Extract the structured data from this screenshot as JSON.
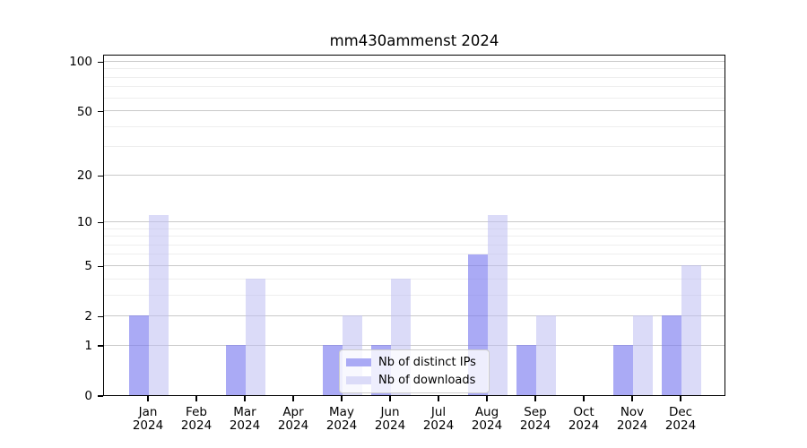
{
  "chart_data": {
    "type": "bar",
    "title": "mm430ammenst 2024",
    "categories": [
      {
        "month": "Jan",
        "year": "2024"
      },
      {
        "month": "Feb",
        "year": "2024"
      },
      {
        "month": "Mar",
        "year": "2024"
      },
      {
        "month": "Apr",
        "year": "2024"
      },
      {
        "month": "May",
        "year": "2024"
      },
      {
        "month": "Jun",
        "year": "2024"
      },
      {
        "month": "Jul",
        "year": "2024"
      },
      {
        "month": "Aug",
        "year": "2024"
      },
      {
        "month": "Sep",
        "year": "2024"
      },
      {
        "month": "Oct",
        "year": "2024"
      },
      {
        "month": "Nov",
        "year": "2024"
      },
      {
        "month": "Dec",
        "year": "2024"
      }
    ],
    "series": [
      {
        "name": "Nb of distinct IPs",
        "values": [
          2,
          0,
          1,
          0,
          1,
          1,
          0,
          6,
          1,
          0,
          1,
          2
        ],
        "color": "#aaaaf5",
        "rgba": "rgba(125,125,240,0.65)"
      },
      {
        "name": "Nb of downloads",
        "values": [
          11,
          0,
          4,
          0,
          2,
          4,
          0,
          11,
          2,
          0,
          2,
          5
        ],
        "color": "#dbdbf8",
        "rgba": "rgba(190,190,242,0.55)"
      }
    ],
    "yscale": "log1p",
    "ylim": [
      0,
      112
    ],
    "yticks": [
      0,
      1,
      2,
      5,
      10,
      20,
      50,
      100
    ],
    "yticks_minor": [
      3,
      4,
      6,
      7,
      8,
      9,
      30,
      40,
      60,
      70,
      80,
      90
    ],
    "grid": true,
    "legend_position": "lower center inside plot",
    "colors": {
      "spine": "#000000",
      "grid_major": "#c9c9c9",
      "grid_minor": "#eeeeee",
      "text": "#000000",
      "background": "#ffffff"
    }
  }
}
